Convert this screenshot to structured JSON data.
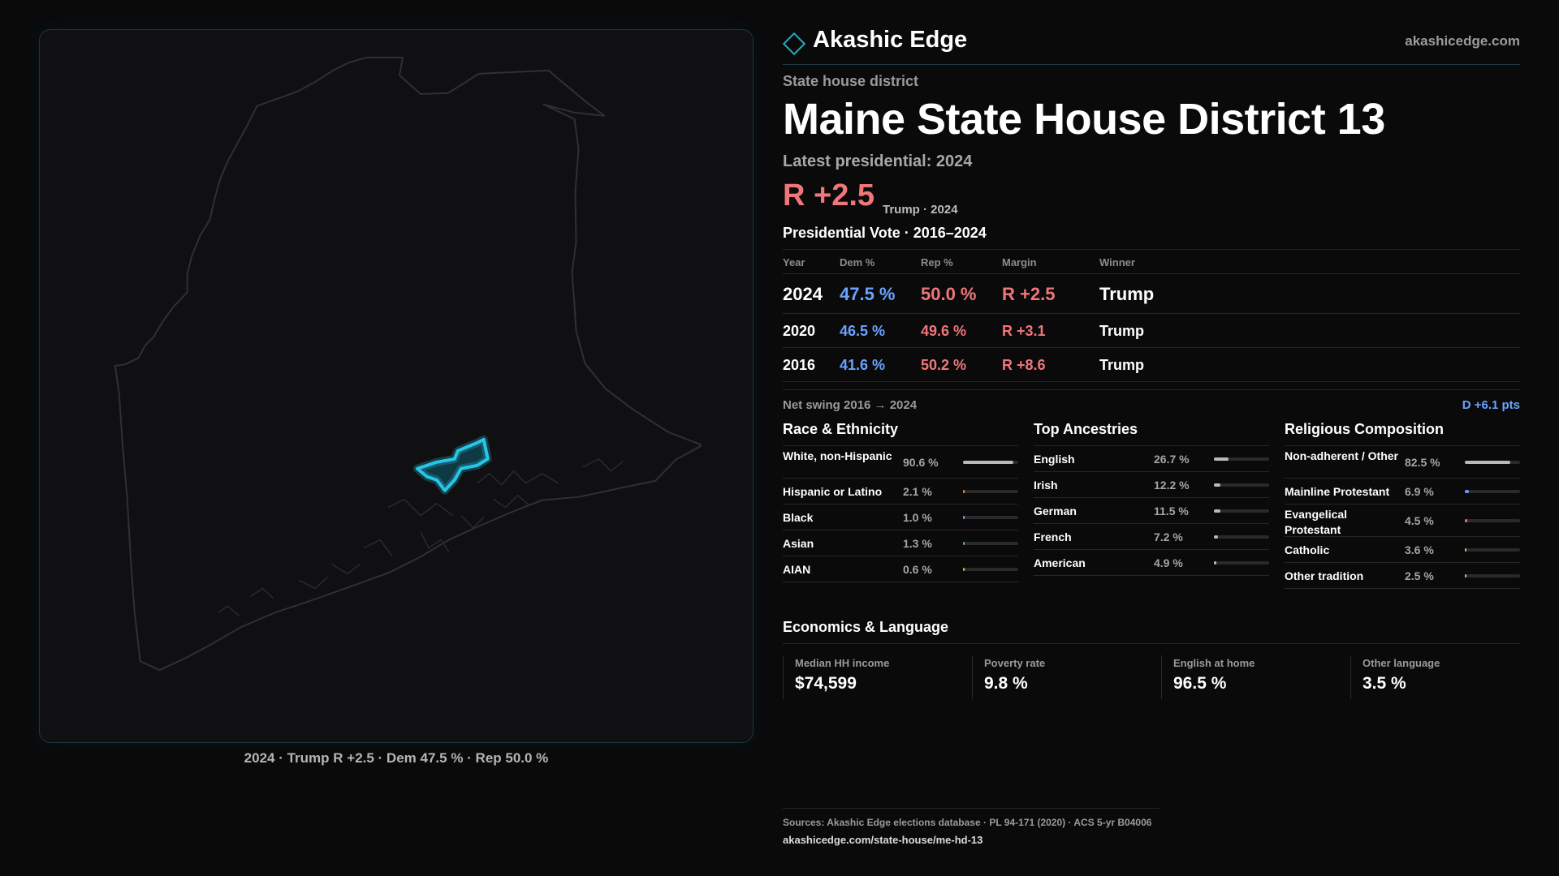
{
  "map": {
    "caption": "2024 · Trump R +2.5 · Dem 47.5 % · Rep 50.0 %",
    "state_outline_color": "#303034",
    "district_color": "#27c6e6"
  },
  "brand": {
    "name": "Akashic Edge",
    "url": "akashicedge.com"
  },
  "header": {
    "kicker": "State house district",
    "title": "Maine State House District 13",
    "subtitle": "Latest presidential: 2024",
    "margin": "R +2.5",
    "margin_note": "Trump · 2024"
  },
  "vote": {
    "title": "Presidential Vote · 2016–2024",
    "columns": [
      "Year",
      "Dem %",
      "Rep %",
      "Margin",
      "Winner"
    ],
    "rows": [
      {
        "year": "2024",
        "dem": "47.5 %",
        "rep": "50.0 %",
        "margin": "R +2.5",
        "winner": "Trump"
      },
      {
        "year": "2020",
        "dem": "46.5 %",
        "rep": "49.6 %",
        "margin": "R +3.1",
        "winner": "Trump"
      },
      {
        "year": "2016",
        "dem": "41.6 %",
        "rep": "50.2 %",
        "margin": "R +8.6",
        "winner": "Trump"
      }
    ],
    "swing_label": "Net swing 2016 → 2024",
    "swing_value": "D +6.1 pts"
  },
  "race": {
    "title": "Race & Ethnicity",
    "items": [
      {
        "label": "White, non-Hispanic",
        "value": "90.6 %",
        "share": 0.906,
        "color": "#b9b9b9"
      },
      {
        "label": "Hispanic or Latino",
        "value": "2.1 %",
        "share": 0.021,
        "color": "#f08a3a"
      },
      {
        "label": "Black",
        "value": "1.0 %",
        "share": 0.01,
        "color": "#9b8cff"
      },
      {
        "label": "Asian",
        "value": "1.3 %",
        "share": 0.013,
        "color": "#3ac28a"
      },
      {
        "label": "AIAN",
        "value": "0.6 %",
        "share": 0.006,
        "color": "#e0b040"
      }
    ]
  },
  "ancestry": {
    "title": "Top Ancestries",
    "items": [
      {
        "label": "English",
        "value": "26.7 %",
        "share": 0.267,
        "color": "#b9b9b9"
      },
      {
        "label": "Irish",
        "value": "12.2 %",
        "share": 0.122,
        "color": "#b9b9b9"
      },
      {
        "label": "German",
        "value": "11.5 %",
        "share": 0.115,
        "color": "#b9b9b9"
      },
      {
        "label": "French",
        "value": "7.2 %",
        "share": 0.072,
        "color": "#b9b9b9"
      },
      {
        "label": "American",
        "value": "4.9 %",
        "share": 0.049,
        "color": "#b9b9b9"
      }
    ]
  },
  "religion": {
    "title": "Religious Composition",
    "items": [
      {
        "label": "Non-adherent / Other",
        "value": "82.5 %",
        "share": 0.825,
        "color": "#b9b9b9"
      },
      {
        "label": "Mainline Protestant",
        "value": "6.9 %",
        "share": 0.069,
        "color": "#5f9dff"
      },
      {
        "label": "Evangelical Protestant",
        "value": "4.5 %",
        "share": 0.045,
        "color": "#f06a6a"
      },
      {
        "label": "Catholic",
        "value": "3.6 %",
        "share": 0.036,
        "color": "#f0b23a"
      },
      {
        "label": "Other tradition",
        "value": "2.5 %",
        "share": 0.025,
        "color": "#b9b9b9"
      }
    ]
  },
  "econ": {
    "title": "Economics & Language",
    "cards": [
      {
        "label": "Median HH income",
        "value": "$74,599"
      },
      {
        "label": "Poverty rate",
        "value": "9.8 %"
      },
      {
        "label": "English at home",
        "value": "96.5 %"
      },
      {
        "label": "Other language",
        "value": "3.5 %"
      }
    ]
  },
  "sources": {
    "line": "Sources: Akashic Edge elections database · PL 94-171 (2020) · ACS 5-yr B04006",
    "link": "akashicedge.com/state-house/me-hd-13"
  }
}
